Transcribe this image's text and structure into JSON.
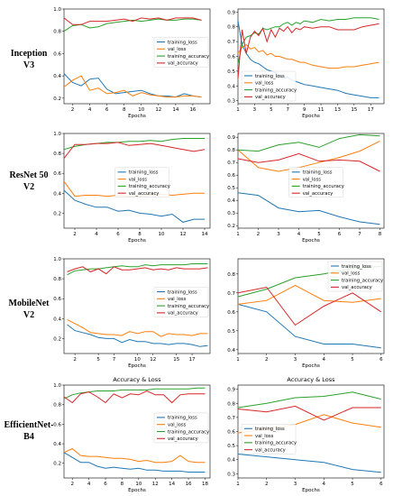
{
  "row_labels": [
    [
      "Inception",
      "V3"
    ],
    [
      "ResNet 50",
      "V2"
    ],
    [
      "MobileNet",
      "V2"
    ],
    [
      "EfficientNet-",
      "B4"
    ]
  ],
  "colors": {
    "training_loss": "#1f77b4",
    "val_loss": "#ff7f0e",
    "training_accuracy": "#2ca02c",
    "val_accuracy": "#d62728"
  },
  "chart_data": [
    {
      "type": "line",
      "title": "",
      "xlabel": "Epochs",
      "ylabel": "",
      "xlim": [
        1,
        18
      ],
      "ylim": [
        0.15,
        1.0
      ],
      "xticks": [
        2,
        4,
        6,
        8,
        10,
        12,
        14,
        16
      ],
      "yticks": [
        0.2,
        0.4,
        0.6,
        0.8,
        1.0
      ],
      "yticklabels": [
        "0.2",
        "0.4",
        "0.6",
        "0.8",
        "1.0"
      ],
      "legend": "right-middle",
      "x": [
        1,
        2,
        3,
        4,
        5,
        6,
        7,
        8,
        9,
        10,
        11,
        12,
        13,
        14,
        15,
        16,
        17
      ],
      "series": [
        {
          "name": "training_loss",
          "values": [
            0.42,
            0.34,
            0.31,
            0.37,
            0.38,
            0.28,
            0.24,
            0.25,
            0.26,
            0.27,
            0.24,
            0.22,
            0.22,
            0.21,
            0.24,
            0.22,
            0.21
          ]
        },
        {
          "name": "val_loss",
          "values": [
            0.3,
            0.36,
            0.4,
            0.27,
            0.29,
            0.24,
            0.25,
            0.27,
            0.22,
            0.25,
            0.23,
            0.22,
            0.21,
            0.21,
            0.22,
            0.22,
            0.21
          ]
        },
        {
          "name": "training_accuracy",
          "values": [
            0.8,
            0.85,
            0.86,
            0.83,
            0.84,
            0.87,
            0.88,
            0.89,
            0.9,
            0.89,
            0.9,
            0.91,
            0.9,
            0.9,
            0.91,
            0.91,
            0.9
          ]
        },
        {
          "name": "val_accuracy",
          "values": [
            0.92,
            0.86,
            0.86,
            0.89,
            0.89,
            0.89,
            0.9,
            0.91,
            0.89,
            0.92,
            0.91,
            0.92,
            0.9,
            0.92,
            0.92,
            0.92,
            0.9
          ]
        }
      ]
    },
    {
      "type": "line",
      "title": "",
      "xlabel": "Epochs",
      "ylabel": "",
      "xlim": [
        1,
        18.6
      ],
      "ylim": [
        0.28,
        0.92
      ],
      "xticks": [
        1,
        3,
        5,
        7,
        9,
        11,
        13,
        15,
        17
      ],
      "yticks": [
        0.3,
        0.4,
        0.5,
        0.6,
        0.7,
        0.8,
        0.9
      ],
      "yticklabels": [
        "0.3",
        "0.4",
        "0.5",
        "0.6",
        "0.7",
        "0.8",
        "0.9"
      ],
      "legend": "lower-left",
      "x": [
        1,
        1.5,
        2,
        2.5,
        3,
        3.5,
        4,
        4.5,
        5,
        5.5,
        6,
        6.5,
        7,
        7.5,
        8,
        8.5,
        9,
        10,
        11,
        12,
        13,
        14,
        15,
        16,
        17,
        18
      ],
      "series": [
        {
          "name": "training_loss",
          "values": [
            0.84,
            0.68,
            0.62,
            0.58,
            0.56,
            0.55,
            0.53,
            0.51,
            0.5,
            0.49,
            0.47,
            0.45,
            0.46,
            0.44,
            0.43,
            0.42,
            0.41,
            0.4,
            0.39,
            0.38,
            0.37,
            0.35,
            0.34,
            0.33,
            0.32,
            0.32
          ]
        },
        {
          "name": "val_loss",
          "values": [
            0.62,
            0.66,
            0.68,
            0.65,
            0.66,
            0.63,
            0.64,
            0.61,
            0.62,
            0.6,
            0.6,
            0.59,
            0.58,
            0.58,
            0.57,
            0.56,
            0.56,
            0.54,
            0.53,
            0.52,
            0.52,
            0.53,
            0.53,
            0.54,
            0.55,
            0.56
          ]
        },
        {
          "name": "training_accuracy",
          "values": [
            0.55,
            0.68,
            0.73,
            0.74,
            0.76,
            0.75,
            0.79,
            0.78,
            0.79,
            0.8,
            0.8,
            0.82,
            0.83,
            0.81,
            0.83,
            0.82,
            0.84,
            0.83,
            0.85,
            0.84,
            0.85,
            0.85,
            0.86,
            0.86,
            0.86,
            0.85
          ]
        },
        {
          "name": "val_accuracy",
          "values": [
            0.45,
            0.78,
            0.62,
            0.73,
            0.77,
            0.74,
            0.79,
            0.7,
            0.78,
            0.73,
            0.79,
            0.77,
            0.8,
            0.76,
            0.79,
            0.78,
            0.8,
            0.79,
            0.8,
            0.8,
            0.78,
            0.78,
            0.78,
            0.8,
            0.81,
            0.82
          ]
        }
      ]
    },
    {
      "type": "line",
      "title": "",
      "xlabel": "Epochs",
      "ylabel": "",
      "xlim": [
        1,
        14.5
      ],
      "ylim": [
        0.05,
        1.0
      ],
      "xticks": [
        2,
        4,
        6,
        8,
        10,
        12,
        14
      ],
      "yticks": [
        0.2,
        0.4,
        0.6,
        0.8,
        1.0
      ],
      "yticklabels": [
        "0.2",
        "0.4",
        "0.6",
        "0.8",
        "1.0"
      ],
      "legend": "center",
      "x": [
        1,
        2,
        3,
        4,
        5,
        6,
        7,
        8,
        9,
        10,
        11,
        12,
        13,
        14
      ],
      "series": [
        {
          "name": "training_loss",
          "values": [
            0.43,
            0.33,
            0.29,
            0.26,
            0.26,
            0.22,
            0.23,
            0.2,
            0.19,
            0.17,
            0.19,
            0.11,
            0.14,
            0.14
          ]
        },
        {
          "name": "val_loss",
          "values": [
            0.52,
            0.37,
            0.38,
            0.38,
            0.37,
            0.38,
            0.37,
            0.37,
            0.38,
            0.39,
            0.38,
            0.39,
            0.4,
            0.4
          ]
        },
        {
          "name": "training_accuracy",
          "values": [
            0.84,
            0.87,
            0.89,
            0.9,
            0.91,
            0.91,
            0.92,
            0.92,
            0.93,
            0.92,
            0.94,
            0.95,
            0.95,
            0.95
          ]
        },
        {
          "name": "val_accuracy",
          "values": [
            0.75,
            0.89,
            0.89,
            0.9,
            0.9,
            0.91,
            0.88,
            0.89,
            0.9,
            0.88,
            0.86,
            0.84,
            0.82,
            0.84
          ]
        }
      ]
    },
    {
      "type": "line",
      "title": "",
      "xlabel": "Epochs",
      "ylabel": "",
      "xlim": [
        1,
        8.2
      ],
      "ylim": [
        0.18,
        0.93
      ],
      "xticks": [
        1,
        2,
        3,
        4,
        5,
        6,
        7,
        8
      ],
      "yticks": [
        0.2,
        0.3,
        0.4,
        0.5,
        0.6,
        0.7,
        0.8,
        0.9
      ],
      "yticklabels": [
        "0.2",
        "0.3",
        "0.4",
        "0.5",
        "0.6",
        "0.7",
        "0.8",
        "0.9"
      ],
      "legend": "center",
      "x": [
        1,
        2,
        3,
        4,
        5,
        6,
        7,
        8
      ],
      "series": [
        {
          "name": "training_loss",
          "values": [
            0.46,
            0.44,
            0.34,
            0.31,
            0.32,
            0.27,
            0.23,
            0.21
          ]
        },
        {
          "name": "val_loss",
          "values": [
            0.8,
            0.66,
            0.63,
            0.66,
            0.7,
            0.74,
            0.79,
            0.87
          ]
        },
        {
          "name": "training_accuracy",
          "values": [
            0.8,
            0.79,
            0.84,
            0.86,
            0.82,
            0.89,
            0.92,
            0.91
          ]
        },
        {
          "name": "val_accuracy",
          "values": [
            0.73,
            0.7,
            0.72,
            0.77,
            0.71,
            0.72,
            0.71,
            0.63
          ]
        }
      ]
    },
    {
      "type": "line",
      "title": "",
      "xlabel": "Epochs",
      "ylabel": "",
      "xlim": [
        0.6,
        19.3
      ],
      "ylim": [
        0.05,
        1.0
      ],
      "xticks": [
        2,
        5,
        7,
        10,
        12,
        15,
        17
      ],
      "yticks": [
        0.2,
        0.4,
        0.6,
        0.8,
        1.0
      ],
      "yticklabels": [
        "0.2",
        "0.4",
        "0.6",
        "0.8",
        "1.0"
      ],
      "legend": "right-middle",
      "x": [
        1,
        2,
        3,
        4,
        5,
        6,
        7,
        8,
        9,
        10,
        11,
        12,
        13,
        14,
        15,
        16,
        17,
        18,
        19
      ],
      "series": [
        {
          "name": "training_loss",
          "values": [
            0.34,
            0.28,
            0.26,
            0.24,
            0.21,
            0.2,
            0.2,
            0.16,
            0.19,
            0.17,
            0.17,
            0.15,
            0.15,
            0.14,
            0.15,
            0.15,
            0.14,
            0.12,
            0.13
          ]
        },
        {
          "name": "val_loss",
          "values": [
            0.39,
            0.35,
            0.31,
            0.26,
            0.25,
            0.24,
            0.24,
            0.23,
            0.27,
            0.25,
            0.27,
            0.27,
            0.22,
            0.25,
            0.24,
            0.24,
            0.23,
            0.25,
            0.25
          ]
        },
        {
          "name": "training_accuracy",
          "values": [
            0.84,
            0.88,
            0.89,
            0.9,
            0.9,
            0.91,
            0.92,
            0.93,
            0.92,
            0.92,
            0.94,
            0.93,
            0.94,
            0.94,
            0.94,
            0.94,
            0.95,
            0.95,
            0.95
          ]
        },
        {
          "name": "val_accuracy",
          "values": [
            0.87,
            0.9,
            0.92,
            0.87,
            0.9,
            0.85,
            0.92,
            0.89,
            0.89,
            0.9,
            0.91,
            0.89,
            0.9,
            0.89,
            0.91,
            0.9,
            0.9,
            0.9,
            0.91
          ]
        }
      ]
    },
    {
      "type": "line",
      "title": "",
      "xlabel": "Epochs",
      "ylabel": "",
      "xlim": [
        1,
        6.1
      ],
      "ylim": [
        0.38,
        0.88
      ],
      "xticks": [
        1,
        2,
        3,
        4,
        5,
        6
      ],
      "yticks": [
        0.4,
        0.5,
        0.6,
        0.7,
        0.8
      ],
      "yticklabels": [
        "0.4",
        "0.5",
        "0.6",
        "0.7",
        "0.8"
      ],
      "legend": "upper-right",
      "x": [
        1,
        2,
        3,
        4,
        5,
        6
      ],
      "series": [
        {
          "name": "training_loss",
          "values": [
            0.64,
            0.6,
            0.47,
            0.43,
            0.43,
            0.41
          ]
        },
        {
          "name": "val_loss",
          "values": [
            0.64,
            0.66,
            0.74,
            0.66,
            0.65,
            0.67
          ]
        },
        {
          "name": "training_accuracy",
          "values": [
            0.68,
            0.72,
            0.78,
            0.8,
            0.83,
            0.84
          ]
        },
        {
          "name": "val_accuracy",
          "values": [
            0.7,
            0.73,
            0.53,
            0.63,
            0.7,
            0.6
          ]
        }
      ]
    },
    {
      "type": "line",
      "title": "Accuracy & Loss",
      "xlabel": "Epochs",
      "ylabel": "",
      "xlim": [
        1,
        18.6
      ],
      "ylim": [
        0.05,
        1.0
      ],
      "xticks": [
        2,
        4,
        6,
        8,
        10,
        12,
        14,
        16,
        18
      ],
      "yticks": [
        0.2,
        0.4,
        0.6,
        0.8,
        1.0
      ],
      "yticklabels": [
        "0.2",
        "0.4",
        "0.6",
        "0.8",
        "1.0"
      ],
      "legend": "right-middle",
      "x": [
        1,
        2,
        3,
        4,
        5,
        6,
        7,
        8,
        9,
        10,
        11,
        12,
        13,
        14,
        15,
        16,
        17,
        18
      ],
      "series": [
        {
          "name": "training_loss",
          "values": [
            0.31,
            0.26,
            0.21,
            0.21,
            0.17,
            0.15,
            0.16,
            0.15,
            0.14,
            0.15,
            0.13,
            0.13,
            0.12,
            0.12,
            0.12,
            0.11,
            0.11,
            0.11
          ]
        },
        {
          "name": "val_loss",
          "values": [
            0.31,
            0.35,
            0.28,
            0.27,
            0.27,
            0.26,
            0.25,
            0.25,
            0.24,
            0.22,
            0.23,
            0.21,
            0.21,
            0.22,
            0.28,
            0.22,
            0.21,
            0.21
          ]
        },
        {
          "name": "training_accuracy",
          "values": [
            0.86,
            0.9,
            0.92,
            0.93,
            0.94,
            0.94,
            0.94,
            0.95,
            0.95,
            0.95,
            0.95,
            0.96,
            0.96,
            0.96,
            0.96,
            0.96,
            0.97,
            0.97
          ]
        },
        {
          "name": "val_accuracy",
          "values": [
            0.88,
            0.82,
            0.91,
            0.93,
            0.88,
            0.82,
            0.91,
            0.87,
            0.91,
            0.9,
            0.94,
            0.9,
            0.9,
            0.82,
            0.9,
            0.91,
            0.91,
            0.91
          ]
        }
      ]
    },
    {
      "type": "line",
      "title": "Accuracy & Loss",
      "xlabel": "Epochs",
      "ylabel": "",
      "xlim": [
        1,
        6.1
      ],
      "ylim": [
        0.27,
        0.93
      ],
      "xticks": [
        1,
        2,
        3,
        4,
        5,
        6
      ],
      "yticks": [
        0.3,
        0.4,
        0.5,
        0.6,
        0.7,
        0.8,
        0.9
      ],
      "yticklabels": [
        "0.3",
        "0.4",
        "0.5",
        "0.6",
        "0.7",
        "0.8",
        "0.9"
      ],
      "legend": "left-middle",
      "x": [
        1,
        2,
        3,
        4,
        5,
        6
      ],
      "series": [
        {
          "name": "training_loss",
          "values": [
            0.44,
            0.42,
            0.4,
            0.38,
            0.33,
            0.31
          ]
        },
        {
          "name": "val_loss",
          "values": [
            0.59,
            0.62,
            0.65,
            0.72,
            0.66,
            0.63
          ]
        },
        {
          "name": "training_accuracy",
          "values": [
            0.77,
            0.8,
            0.84,
            0.85,
            0.88,
            0.83
          ]
        },
        {
          "name": "val_accuracy",
          "values": [
            0.76,
            0.74,
            0.78,
            0.68,
            0.77,
            0.77
          ]
        }
      ]
    }
  ]
}
